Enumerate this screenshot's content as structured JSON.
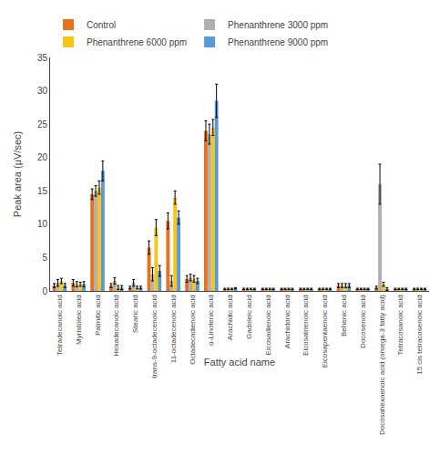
{
  "chart_data": {
    "type": "bar",
    "xlabel": "Fatty acid name",
    "ylabel": "Peak area (μV/sec)",
    "categories": [
      "Tetradecanoic acid",
      "Myristoleic acid",
      "Palmitic acid",
      "Hexadecanoic acid",
      "Stearic acid",
      "trans-9-octadecenoic acid",
      "11-octadecenoic acid",
      "Octadecadienoic acid",
      "α-Linolenic acid",
      "Arachidic acid",
      "Gadoleic acid",
      "Eicosadienoic acid",
      "Arachidonic acid",
      "Eicosatrienoic acid",
      "Eicosapentaenoic acid",
      "Behenic acid",
      "Docosenoic acid",
      "Docosahexaenoic acid (omega-3 fatty acid)",
      "Tetracosanoic acid",
      "15 cis tetracosenoic acid"
    ],
    "series": [
      {
        "name": "Control",
        "color": "#E8711A",
        "values": [
          0.8,
          1.2,
          14.5,
          0.8,
          0.5,
          6.5,
          10.5,
          1.8,
          24.0,
          0.3,
          0.3,
          0.3,
          0.3,
          0.3,
          0.3,
          0.8,
          0.3,
          0.5,
          0.3,
          0.3
        ],
        "errors": [
          0.3,
          0.5,
          0.8,
          0.3,
          0.2,
          1.0,
          1.2,
          0.5,
          1.5,
          0.1,
          0.1,
          0.1,
          0.1,
          0.1,
          0.1,
          0.3,
          0.1,
          0.2,
          0.1,
          0.1
        ]
      },
      {
        "name": "Phenanthrene 3000 ppm",
        "color": "#B0B0B0",
        "values": [
          1.2,
          1.0,
          15.0,
          1.5,
          1.2,
          2.5,
          1.5,
          2.0,
          23.5,
          0.3,
          0.3,
          0.3,
          0.3,
          0.3,
          0.3,
          0.8,
          0.3,
          16.0,
          0.3,
          0.3
        ],
        "errors": [
          0.5,
          0.4,
          0.8,
          0.5,
          0.5,
          1.0,
          0.8,
          0.5,
          1.5,
          0.1,
          0.1,
          0.1,
          0.1,
          0.1,
          0.1,
          0.3,
          0.1,
          3.0,
          0.1,
          0.1
        ]
      },
      {
        "name": "Phenanthrene 6000 ppm",
        "color": "#F5C518",
        "values": [
          1.5,
          1.0,
          15.5,
          0.5,
          0.5,
          9.5,
          14.0,
          1.8,
          24.5,
          0.3,
          0.3,
          0.3,
          0.3,
          0.3,
          0.3,
          0.8,
          0.3,
          1.0,
          0.3,
          0.3
        ],
        "errors": [
          0.4,
          0.3,
          1.0,
          0.3,
          0.2,
          1.2,
          1.0,
          0.5,
          1.2,
          0.1,
          0.1,
          0.1,
          0.1,
          0.1,
          0.1,
          0.3,
          0.1,
          0.3,
          0.1,
          0.1
        ]
      },
      {
        "name": "Phenanthrene 9000 ppm",
        "color": "#5B9BD5",
        "values": [
          0.8,
          1.0,
          18.0,
          0.5,
          0.5,
          3.0,
          11.0,
          1.5,
          28.5,
          0.4,
          0.3,
          0.3,
          0.3,
          0.3,
          0.3,
          0.8,
          0.3,
          0.3,
          0.3,
          0.3
        ],
        "errors": [
          0.3,
          0.4,
          1.5,
          0.3,
          0.2,
          0.8,
          1.0,
          0.4,
          2.5,
          0.1,
          0.1,
          0.1,
          0.1,
          0.1,
          0.1,
          0.3,
          0.1,
          0.2,
          0.1,
          0.1
        ]
      }
    ],
    "ylim": [
      0,
      35
    ],
    "yticks": [
      0,
      5,
      10,
      15,
      20,
      25,
      30,
      35
    ],
    "legend": "upper left",
    "grid": false
  }
}
